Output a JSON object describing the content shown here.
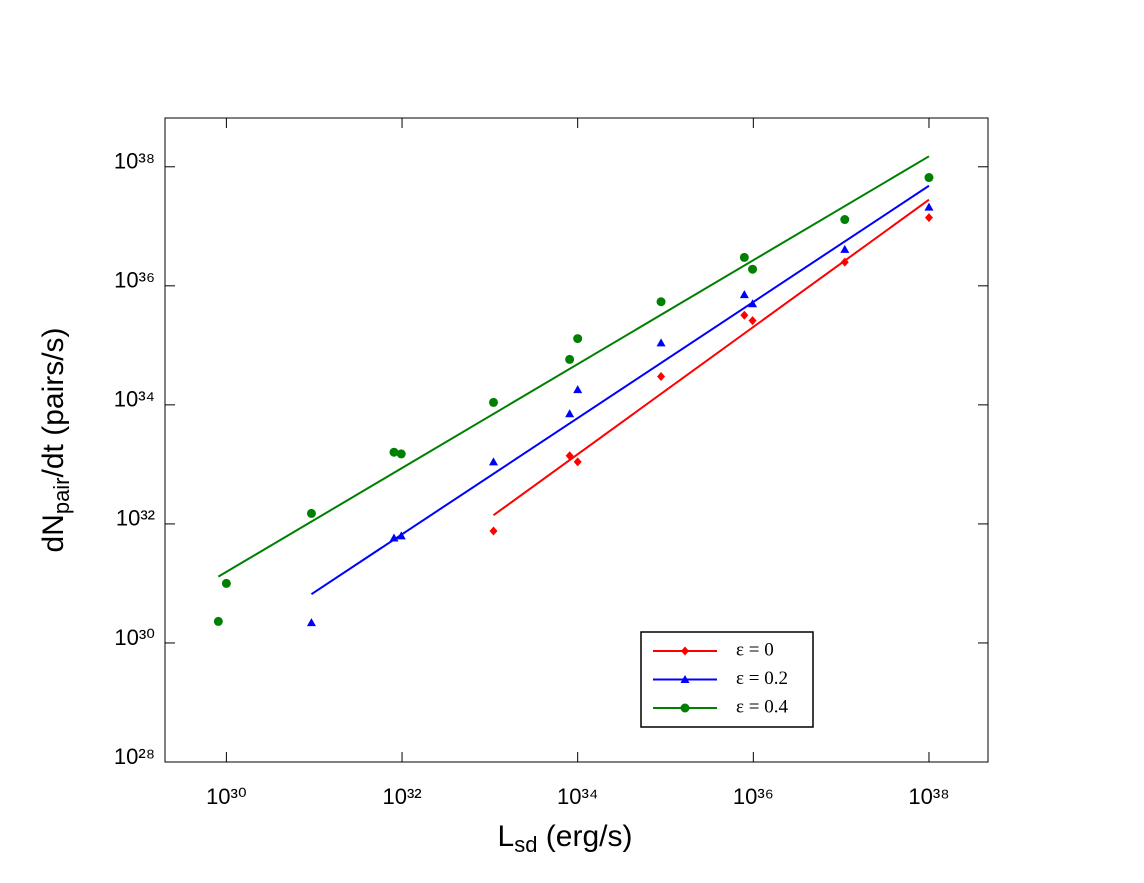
{
  "chart_data": {
    "type": "scatter",
    "xscale": "log",
    "yscale": "log",
    "xlabel": {
      "main": "L",
      "sub": "sd",
      "rest": " (erg/s)"
    },
    "ylabel": {
      "main": "dN",
      "sub": "pair",
      "rest": "/dt (pairs/s)"
    },
    "xlim": [
      2e+29,
      4.7e+38
    ],
    "ylim": [
      1e+28,
      6.6e+38
    ],
    "xticks": [
      {
        "value": 1e+30,
        "label": "10³⁰"
      },
      {
        "value": 1e+32,
        "label": "10³²"
      },
      {
        "value": 1e+34,
        "label": "10³⁴"
      },
      {
        "value": 1e+36,
        "label": "10³⁶"
      },
      {
        "value": 1e+38,
        "label": "10³⁸"
      }
    ],
    "yticks": [
      {
        "value": 1e+28,
        "label": "10²⁸"
      },
      {
        "value": 1e+30,
        "label": "10³⁰"
      },
      {
        "value": 1e+32,
        "label": "10³²"
      },
      {
        "value": 1e+34,
        "label": "10³⁴"
      },
      {
        "value": 1e+36,
        "label": "10³⁶"
      },
      {
        "value": 1e+38,
        "label": "10³⁸"
      }
    ],
    "legend": "lower right",
    "series": [
      {
        "name": "ε = 0",
        "color": "#ff0000",
        "marker": "diamond",
        "x": [
          1.1e+33,
          8.1e+33,
          1e+34,
          8.9e+34,
          7.9e+35,
          9.8e+35,
          1.1e+37,
          1e+38
        ],
        "values": [
          7.6e+31,
          1.4e+33,
          1.1e+33,
          3e+34,
          3.2e+35,
          2.6e+35,
          2.5e+36,
          1.4e+37
        ],
        "fit": {
          "x": [
            1.1e+33,
            1e+38
          ],
          "values": [
            1.4e+32,
            2.8e+37
          ]
        }
      },
      {
        "name": "ε = 0.2",
        "color": "#0000ff",
        "marker": "triangle",
        "x": [
          9.3e+30,
          8.1e+31,
          9.8e+31,
          1.1e+33,
          8.1e+33,
          1e+34,
          8.9e+34,
          7.9e+35,
          9.8e+35,
          1.1e+37,
          1e+38
        ],
        "values": [
          2.2e+30,
          5.8e+31,
          6.3e+31,
          1.1e+33,
          7.1e+33,
          1.8e+34,
          1.1e+35,
          7.1e+35,
          5e+35,
          4.1e+36,
          2.1e+37
        ],
        "fit": {
          "x": [
            9.3e+30,
            1e+38
          ],
          "values": [
            6.6e+30,
            4.8e+37
          ]
        }
      },
      {
        "name": "ε = 0.4",
        "color": "#008000",
        "marker": "circle",
        "x": [
          8.1e+29,
          1e+30,
          9.3e+30,
          8.1e+31,
          9.8e+31,
          1.1e+33,
          8.1e+33,
          1e+34,
          8.9e+34,
          7.9e+35,
          9.8e+35,
          1.1e+37,
          1e+38
        ],
        "values": [
          2.3e+30,
          1e+31,
          1.5e+32,
          1.6e+33,
          1.5e+33,
          1.1e+34,
          5.8e+34,
          1.3e+35,
          5.4e+35,
          3e+36,
          1.9e+36,
          1.3e+37,
          6.6e+37
        ],
        "fit": {
          "x": [
            8.1e+29,
            1e+38
          ],
          "values": [
            1.3e+31,
            1.5e+38
          ]
        }
      }
    ]
  }
}
